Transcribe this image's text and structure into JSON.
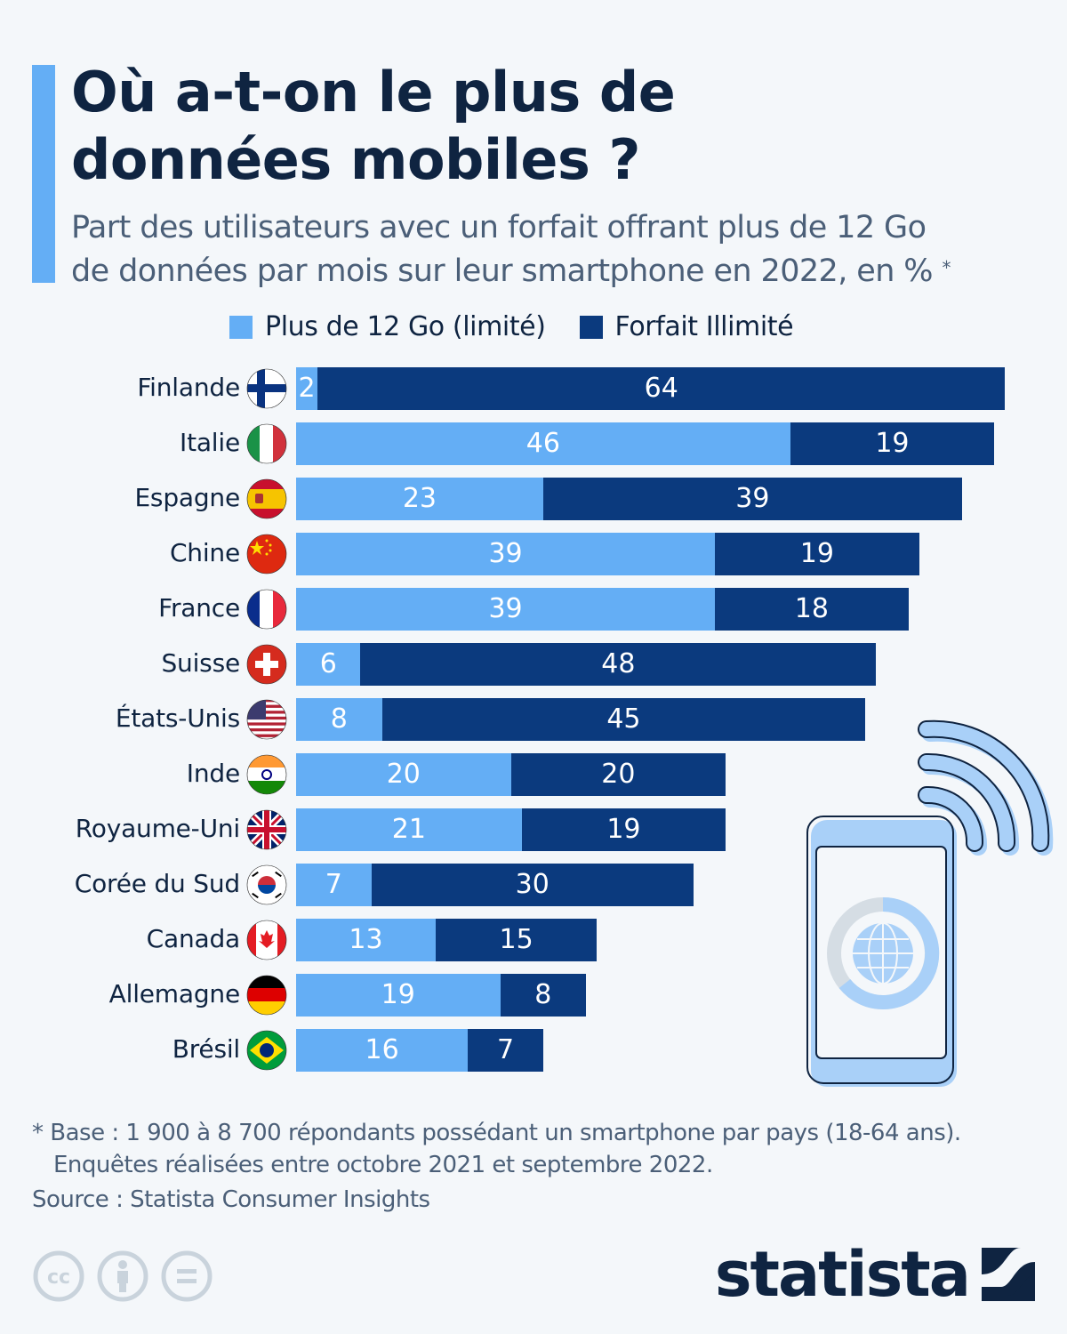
{
  "header": {
    "title_line1": "Où a-t-on le plus de",
    "title_line2": "données mobiles ?",
    "subtitle_line1": "Part des utilisateurs avec un forfait offrant plus de 12 Go",
    "subtitle_line2": "de données par mois sur leur smartphone en 2022, en %",
    "subtitle_asterisk": "*"
  },
  "colors": {
    "limited": "#64aef5",
    "unlimited": "#0b3a7e",
    "title": "#0f2441",
    "text_muted": "#4b5f78",
    "background": "#f4f7fa"
  },
  "chart_data": {
    "type": "bar",
    "orientation": "horizontal",
    "stacked": true,
    "title": "Où a-t-on le plus de données mobiles ?",
    "subtitle": "Part des utilisateurs avec un forfait offrant plus de 12 Go de données par mois sur leur smartphone en 2022, en % *",
    "xlabel": "",
    "ylabel": "",
    "xlim": [
      0,
      66
    ],
    "grid": false,
    "legend_position": "top",
    "categories": [
      "Finlande",
      "Italie",
      "Espagne",
      "Chine",
      "France",
      "Suisse",
      "États-Unis",
      "Inde",
      "Royaume-Uni",
      "Corée du Sud",
      "Canada",
      "Allemagne",
      "Brésil"
    ],
    "flags": [
      "finland-flag",
      "italy-flag",
      "spain-flag",
      "china-flag",
      "france-flag",
      "switzerland-flag",
      "usa-flag",
      "india-flag",
      "uk-flag",
      "south-korea-flag",
      "canada-flag",
      "germany-flag",
      "brazil-flag"
    ],
    "series": [
      {
        "name": "Plus de 12 Go (limité)",
        "color": "#64aef5",
        "values": [
          2,
          46,
          23,
          39,
          39,
          6,
          8,
          20,
          21,
          7,
          13,
          19,
          16
        ]
      },
      {
        "name": "Forfait Illimité",
        "color": "#0b3a7e",
        "values": [
          64,
          19,
          39,
          19,
          18,
          48,
          45,
          20,
          19,
          30,
          15,
          8,
          7
        ]
      }
    ]
  },
  "footer": {
    "footnote_line1": "* Base : 1 900 à 8 700 répondants possédant un smartphone par pays (18-64 ans).",
    "footnote_line2": "Enquêtes réalisées entre octobre 2021 et septembre 2022.",
    "source": "Source : Statista Consumer Insights",
    "brand": "statista",
    "license_icons": [
      "cc-icon",
      "attribution-icon",
      "no-derivatives-icon"
    ]
  }
}
